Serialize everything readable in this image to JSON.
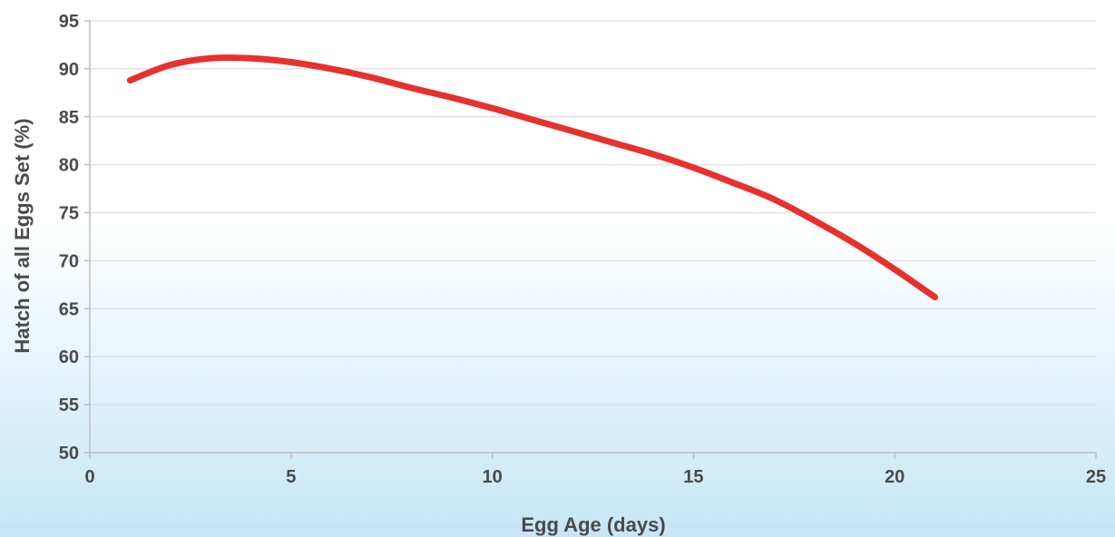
{
  "chart_data": {
    "type": "line",
    "title": "",
    "xlabel": "Egg Age (days)",
    "ylabel": "Hatch of all Eggs Set (%)",
    "xlim": [
      0,
      25
    ],
    "ylim": [
      50,
      95
    ],
    "x_ticks": [
      0,
      5,
      10,
      15,
      20,
      25
    ],
    "y_ticks": [
      50,
      55,
      60,
      65,
      70,
      75,
      80,
      85,
      90,
      95
    ],
    "grid": true,
    "legend": "none",
    "series": [
      {
        "color": "#e8302d",
        "x": [
          1,
          2,
          3,
          4,
          5,
          6,
          7,
          8,
          9,
          10,
          11,
          12,
          13,
          14,
          15,
          16,
          17,
          18,
          19,
          20,
          21
        ],
        "y": [
          88.8,
          90.4,
          91.1,
          91.1,
          90.7,
          90.0,
          89.1,
          88.0,
          87.0,
          85.9,
          84.7,
          83.5,
          82.3,
          81.1,
          79.7,
          78.1,
          76.4,
          74.2,
          71.8,
          69.1,
          66.2
        ]
      }
    ],
    "background": {
      "top": "#ffffff",
      "bottom": "#c6e6f5"
    }
  }
}
